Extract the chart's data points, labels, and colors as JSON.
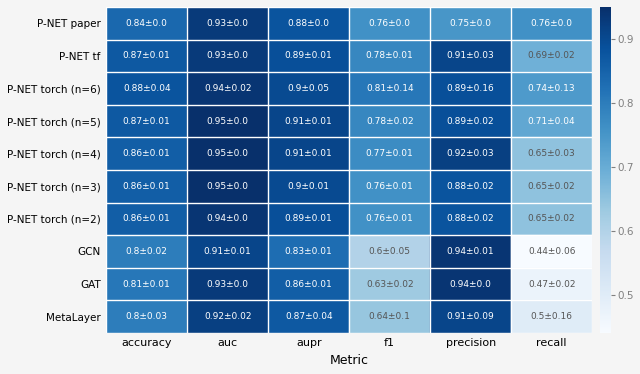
{
  "rows": [
    "P-NET paper",
    "P-NET tf",
    "P-NET torch (n=6)",
    "P-NET torch (n=5)",
    "P-NET torch (n=4)",
    "P-NET torch (n=3)",
    "P-NET torch (n=2)",
    "GCN",
    "GAT",
    "MetaLayer"
  ],
  "cols": [
    "accuracy",
    "auc",
    "aupr",
    "f1",
    "precision",
    "recall"
  ],
  "values": [
    [
      0.84,
      0.93,
      0.88,
      0.76,
      0.75,
      0.76
    ],
    [
      0.87,
      0.93,
      0.89,
      0.78,
      0.91,
      0.69
    ],
    [
      0.88,
      0.94,
      0.9,
      0.81,
      0.89,
      0.74
    ],
    [
      0.87,
      0.95,
      0.91,
      0.78,
      0.89,
      0.71
    ],
    [
      0.86,
      0.95,
      0.91,
      0.77,
      0.92,
      0.65
    ],
    [
      0.86,
      0.95,
      0.9,
      0.76,
      0.88,
      0.65
    ],
    [
      0.86,
      0.94,
      0.89,
      0.76,
      0.88,
      0.65
    ],
    [
      0.8,
      0.91,
      0.83,
      0.6,
      0.94,
      0.44
    ],
    [
      0.81,
      0.93,
      0.86,
      0.63,
      0.94,
      0.47
    ],
    [
      0.8,
      0.92,
      0.87,
      0.64,
      0.91,
      0.5
    ]
  ],
  "errors": [
    [
      0.0,
      0.0,
      0.0,
      0.0,
      0.0,
      0.0
    ],
    [
      0.01,
      0.0,
      0.01,
      0.01,
      0.03,
      0.02
    ],
    [
      0.04,
      0.02,
      0.05,
      0.14,
      0.16,
      0.13
    ],
    [
      0.01,
      0.0,
      0.01,
      0.02,
      0.02,
      0.04
    ],
    [
      0.01,
      0.0,
      0.01,
      0.01,
      0.03,
      0.03
    ],
    [
      0.01,
      0.0,
      0.01,
      0.01,
      0.02,
      0.02
    ],
    [
      0.01,
      0.0,
      0.01,
      0.01,
      0.02,
      0.02
    ],
    [
      0.02,
      0.01,
      0.01,
      0.05,
      0.01,
      0.06
    ],
    [
      0.01,
      0.0,
      0.01,
      0.02,
      0.0,
      0.02
    ],
    [
      0.03,
      0.02,
      0.04,
      0.1,
      0.09,
      0.16
    ]
  ],
  "xlabel": "Metric",
  "cmap": "Blues",
  "vmin": 0.44,
  "vmax": 0.95,
  "colorbar_ticks": [
    0.5,
    0.6,
    0.7,
    0.8,
    0.9
  ],
  "figsize": [
    6.4,
    3.74
  ],
  "dpi": 100,
  "linecolor": "white",
  "linewidth": 1.0,
  "fontsize_cell": 6.5,
  "fontsize_rowlabels": 7.5,
  "fontsize_collabels": 8,
  "fontsize_xlabel": 9,
  "fontsize_cbar": 7.5,
  "bg_color": "#f5f5f5"
}
